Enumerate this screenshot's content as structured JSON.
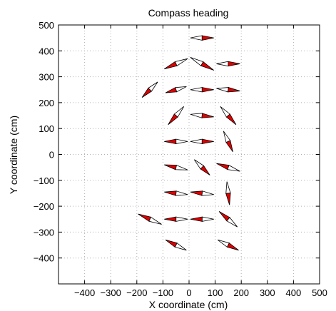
{
  "chart_data": {
    "type": "compass",
    "title": "Compass heading",
    "xlabel": "X coordinate (cm)",
    "ylabel": "Y coordinate (cm)",
    "xlim": [
      -500,
      500
    ],
    "ylim": [
      -500,
      500
    ],
    "x_ticks": [
      -400,
      -300,
      -200,
      -100,
      0,
      100,
      200,
      300,
      400,
      500
    ],
    "y_ticks": [
      -400,
      -300,
      -200,
      -100,
      0,
      100,
      200,
      300,
      400,
      500
    ],
    "x_tick_labels": [
      "−400",
      "−300",
      "−200",
      "−100",
      "0",
      "100",
      "200",
      "300",
      "400",
      "500"
    ],
    "y_tick_labels": [
      "−400",
      "−300",
      "−200",
      "−100",
      "0",
      "100",
      "200",
      "300",
      "400",
      "500"
    ],
    "grid": true,
    "arrow_color": "#e00000",
    "outline_color": "#000000",
    "arrows": [
      {
        "x": 50,
        "y": 450,
        "dx": 45,
        "dy": 0
      },
      {
        "x": -50,
        "y": 350,
        "dx": -45,
        "dy": -20
      },
      {
        "x": 50,
        "y": 350,
        "dx": 45,
        "dy": -25
      },
      {
        "x": 150,
        "y": 350,
        "dx": 45,
        "dy": 0
      },
      {
        "x": -150,
        "y": 250,
        "dx": -30,
        "dy": -30
      },
      {
        "x": -50,
        "y": 250,
        "dx": -40,
        "dy": -12
      },
      {
        "x": 50,
        "y": 250,
        "dx": 45,
        "dy": 0
      },
      {
        "x": 150,
        "y": 250,
        "dx": 45,
        "dy": -5
      },
      {
        "x": -50,
        "y": 150,
        "dx": -30,
        "dy": -35
      },
      {
        "x": 50,
        "y": 150,
        "dx": 45,
        "dy": -5
      },
      {
        "x": 150,
        "y": 150,
        "dx": 30,
        "dy": -35
      },
      {
        "x": -50,
        "y": 50,
        "dx": -45,
        "dy": 0
      },
      {
        "x": 50,
        "y": 50,
        "dx": 45,
        "dy": 0
      },
      {
        "x": 150,
        "y": 50,
        "dx": 18,
        "dy": -40
      },
      {
        "x": -50,
        "y": -50,
        "dx": -45,
        "dy": 10
      },
      {
        "x": 50,
        "y": -50,
        "dx": 30,
        "dy": -30
      },
      {
        "x": 150,
        "y": -50,
        "dx": -45,
        "dy": 15
      },
      {
        "x": -50,
        "y": -150,
        "dx": -45,
        "dy": 5
      },
      {
        "x": 50,
        "y": -150,
        "dx": -45,
        "dy": 5
      },
      {
        "x": 150,
        "y": -150,
        "dx": 5,
        "dy": -45
      },
      {
        "x": -150,
        "y": -250,
        "dx": -45,
        "dy": 20
      },
      {
        "x": -50,
        "y": -250,
        "dx": -45,
        "dy": 0
      },
      {
        "x": 50,
        "y": -250,
        "dx": -45,
        "dy": 0
      },
      {
        "x": 150,
        "y": -250,
        "dx": -35,
        "dy": 30
      },
      {
        "x": -50,
        "y": -350,
        "dx": -40,
        "dy": 20
      },
      {
        "x": 150,
        "y": -350,
        "dx": 40,
        "dy": -20
      }
    ]
  }
}
